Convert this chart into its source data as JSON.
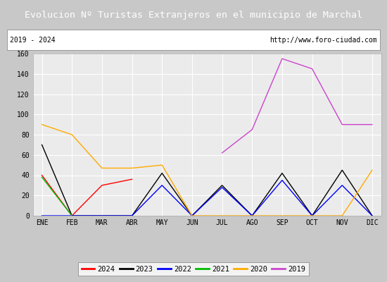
{
  "title": "Evolucion Nº Turistas Extranjeros en el municipio de Marchal",
  "subtitle_left": "2019 - 2024",
  "subtitle_right": "http://www.foro-ciudad.com",
  "months": [
    "ENE",
    "FEB",
    "MAR",
    "ABR",
    "MAY",
    "JUN",
    "JUL",
    "AGO",
    "SEP",
    "OCT",
    "NOV",
    "DIC"
  ],
  "ylim": [
    0,
    160
  ],
  "yticks": [
    0,
    20,
    40,
    60,
    80,
    100,
    120,
    140,
    160
  ],
  "series": {
    "2024": {
      "color": "#ff0000",
      "data": [
        40,
        0,
        30,
        36,
        null,
        null,
        null,
        null,
        null,
        null,
        null,
        null
      ]
    },
    "2023": {
      "color": "#000000",
      "data": [
        70,
        0,
        0,
        0,
        42,
        0,
        30,
        0,
        42,
        0,
        45,
        0
      ]
    },
    "2022": {
      "color": "#0000ff",
      "data": [
        0,
        0,
        0,
        0,
        30,
        0,
        28,
        0,
        35,
        0,
        30,
        0
      ]
    },
    "2021": {
      "color": "#00bb00",
      "data": [
        38,
        0,
        null,
        null,
        null,
        null,
        null,
        null,
        null,
        null,
        null,
        null
      ]
    },
    "2020": {
      "color": "#ffaa00",
      "data": [
        90,
        80,
        47,
        47,
        50,
        0,
        0,
        0,
        0,
        0,
        0,
        45
      ]
    },
    "2019": {
      "color": "#cc44cc",
      "data": [
        null,
        null,
        null,
        null,
        null,
        null,
        62,
        85,
        155,
        145,
        90,
        90
      ]
    }
  },
  "legend_order": [
    "2024",
    "2023",
    "2022",
    "2021",
    "2020",
    "2019"
  ],
  "title_bg_color": "#4472c4",
  "title_fg_color": "#ffffff",
  "plot_bg_color": "#ebebeb",
  "grid_color": "#ffffff",
  "fig_bg_color": "#c8c8c8",
  "subtitle_box_color": "#ffffff",
  "subtitle_font_size": 7,
  "title_font_size": 9.5,
  "tick_font_size": 7,
  "legend_font_size": 7.5
}
